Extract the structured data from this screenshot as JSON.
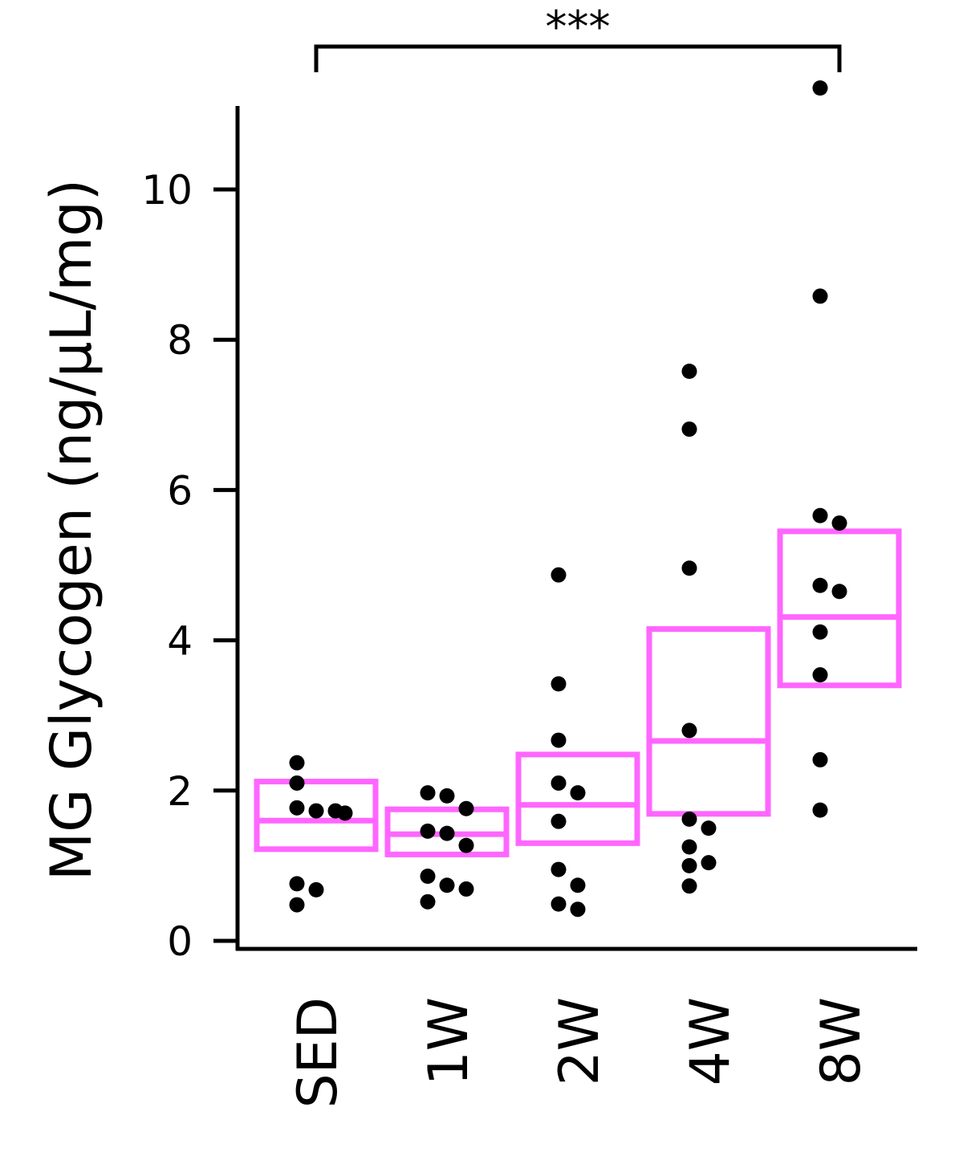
{
  "chart_data": {
    "type": "scatter",
    "ylabel": "MG Glycogen (ng/μL/mg)",
    "xlabel": "",
    "ylim": [
      0,
      11.2
    ],
    "yticks": [
      0,
      2,
      4,
      6,
      8,
      10
    ],
    "categories": [
      "SED",
      "1W",
      "2W",
      "4W",
      "8W"
    ],
    "box_color": "#ff66ff",
    "point_color": "#000000",
    "groups": [
      {
        "label": "SED",
        "box": {
          "lower": 1.22,
          "median": 1.6,
          "upper": 2.12
        },
        "points": [
          2.37,
          2.1,
          1.77,
          1.73,
          1.73,
          1.7,
          0.76,
          0.68,
          0.48
        ]
      },
      {
        "label": "1W",
        "box": {
          "lower": 1.15,
          "median": 1.42,
          "upper": 1.75
        },
        "points": [
          1.97,
          1.93,
          1.76,
          1.46,
          1.43,
          1.27,
          0.86,
          0.74,
          0.69,
          0.52
        ]
      },
      {
        "label": "2W",
        "box": {
          "lower": 1.3,
          "median": 1.81,
          "upper": 2.48
        },
        "points": [
          4.87,
          3.42,
          2.67,
          2.1,
          1.97,
          1.59,
          0.95,
          0.74,
          0.49,
          0.42
        ]
      },
      {
        "label": "4W",
        "box": {
          "lower": 1.69,
          "median": 2.66,
          "upper": 4.15
        },
        "points": [
          7.58,
          6.81,
          4.96,
          2.8,
          1.62,
          1.5,
          1.25,
          1.04,
          1.0,
          0.73
        ]
      },
      {
        "label": "8W",
        "box": {
          "lower": 3.4,
          "median": 4.31,
          "upper": 5.45
        },
        "points": [
          11.35,
          8.58,
          5.66,
          5.56,
          4.73,
          4.65,
          4.11,
          3.54,
          2.41,
          1.74
        ]
      }
    ],
    "significance": {
      "from": "SED",
      "to": "8W",
      "label": "***"
    }
  }
}
